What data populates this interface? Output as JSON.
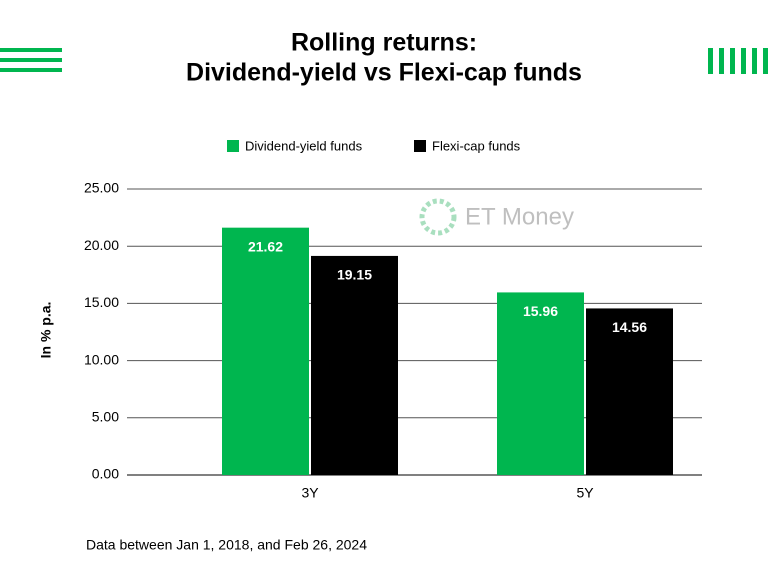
{
  "chart_data": {
    "type": "bar",
    "title": [
      "Rolling returns:",
      "Dividend-yield vs Flexi-cap funds"
    ],
    "watermark": "ET Money",
    "ylabel": "In % p.a.",
    "categories": [
      "3Y",
      "5Y"
    ],
    "series": [
      {
        "name": "Dividend-yield funds",
        "color": "#00b64f",
        "values": [
          21.62,
          15.96
        ]
      },
      {
        "name": "Flexi-cap funds",
        "color": "#000000",
        "values": [
          19.15,
          14.56
        ]
      }
    ],
    "ylim": [
      0,
      25
    ],
    "yticks": [
      {
        "value": 0,
        "label": "0.00"
      },
      {
        "value": 5,
        "label": "5.00"
      },
      {
        "value": 10,
        "label": "10.00"
      },
      {
        "value": 15,
        "label": "15.00"
      },
      {
        "value": 20,
        "label": "20.00"
      },
      {
        "value": 25,
        "label": "25.00"
      }
    ],
    "grid": true,
    "legend": "top",
    "footnote": "Data between Jan 1, 2018, and Feb 26, 2024"
  }
}
